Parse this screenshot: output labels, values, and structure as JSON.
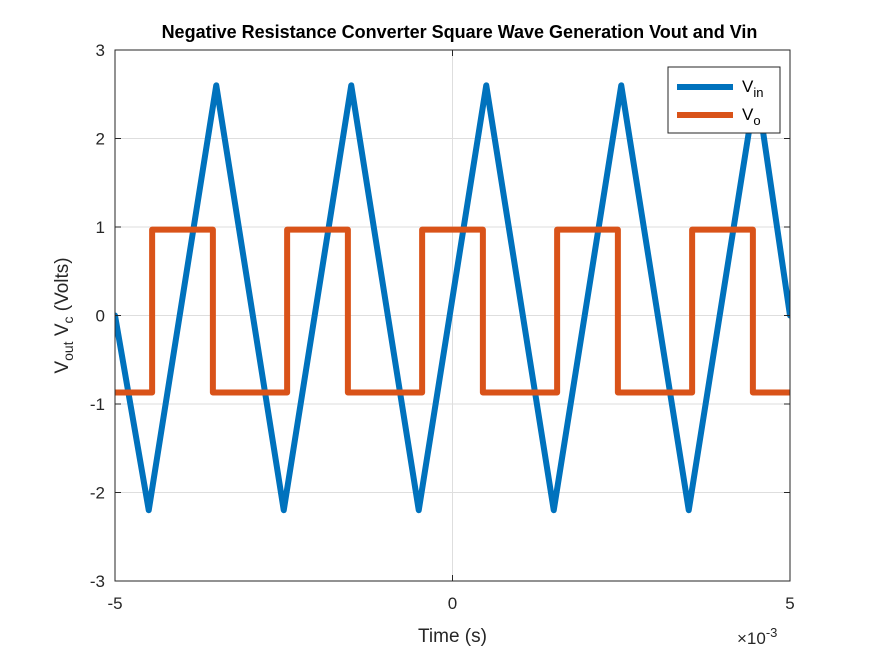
{
  "chart_data": {
    "type": "line",
    "title": "Negative Resistance Converter Square Wave Generation Vout and Vin",
    "xlabel": "Time (s)",
    "ylabel_parts": [
      "V",
      "out",
      " V",
      "c",
      " (Volts)"
    ],
    "x_exponent_label": [
      "×10",
      "-3"
    ],
    "xlim": [
      -5,
      5
    ],
    "ylim": [
      -3,
      3
    ],
    "x_ticks": [
      -5,
      0,
      5
    ],
    "x_tick_labels": [
      "-5",
      "0",
      "5"
    ],
    "y_ticks": [
      -3,
      -2,
      -1,
      0,
      1,
      2,
      3
    ],
    "y_tick_labels": [
      "-3",
      "-2",
      "-1",
      "0",
      "1",
      "2",
      "3"
    ],
    "grid": true,
    "legend_position": "top-right",
    "x_units_note": "x values in units of 1e-3 s",
    "series": [
      {
        "name_parts": [
          "V",
          "in"
        ],
        "color": "#0072BD",
        "x": [
          -5.0,
          -4.5,
          -3.5,
          -2.5,
          -1.5,
          -0.5,
          0.5,
          1.5,
          2.5,
          3.5,
          4.5,
          5.0
        ],
        "y": [
          0.0,
          -2.2,
          2.6,
          -2.2,
          2.6,
          -2.2,
          2.6,
          -2.2,
          2.6,
          -2.2,
          2.6,
          0.0
        ]
      },
      {
        "name_parts": [
          "V",
          "o"
        ],
        "color": "#D95319",
        "x": [
          -5.0,
          -4.45,
          -4.45,
          -3.55,
          -3.55,
          -2.45,
          -2.45,
          -1.55,
          -1.55,
          -0.45,
          -0.45,
          0.45,
          0.45,
          1.55,
          1.55,
          2.45,
          2.45,
          3.55,
          3.55,
          4.45,
          4.45,
          5.0
        ],
        "y": [
          -0.87,
          -0.87,
          0.97,
          0.97,
          -0.87,
          -0.87,
          0.97,
          0.97,
          -0.87,
          -0.87,
          0.97,
          0.97,
          -0.87,
          -0.87,
          0.97,
          0.97,
          -0.87,
          -0.87,
          0.97,
          0.97,
          -0.87,
          -0.87
        ]
      }
    ]
  }
}
